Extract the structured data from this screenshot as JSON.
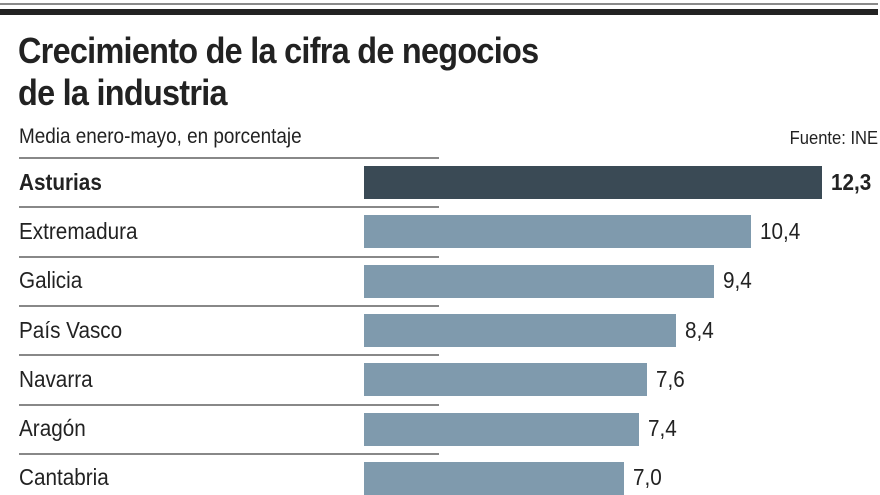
{
  "header": {
    "title_line1": "Crecimiento de la cifra de negocios",
    "title_line2": "de la industria",
    "subtitle": "Media enero-mayo, en porcentaje",
    "source": "Fuente: INE"
  },
  "colors": {
    "highlight_bar": "#3a4a55",
    "bar": "#7f9aad",
    "text": "#222222"
  },
  "chart_data": {
    "type": "bar",
    "orientation": "horizontal",
    "title": "Crecimiento de la cifra de negocios de la industria",
    "subtitle": "Media enero-mayo, en porcentaje",
    "source": "Fuente: INE",
    "xlabel": "",
    "ylabel": "",
    "categories": [
      "Asturias",
      "Extremadura",
      "Galicia",
      "País Vasco",
      "Navarra",
      "Aragón",
      "Cantabria"
    ],
    "values": [
      12.3,
      10.4,
      9.4,
      8.4,
      7.6,
      7.4,
      7.0
    ],
    "value_labels": [
      "12,3",
      "10,4",
      "9,4",
      "8,4",
      "7,6",
      "7,4",
      "7,0"
    ],
    "highlighted": "Asturias",
    "grid": false,
    "legend": "none"
  }
}
